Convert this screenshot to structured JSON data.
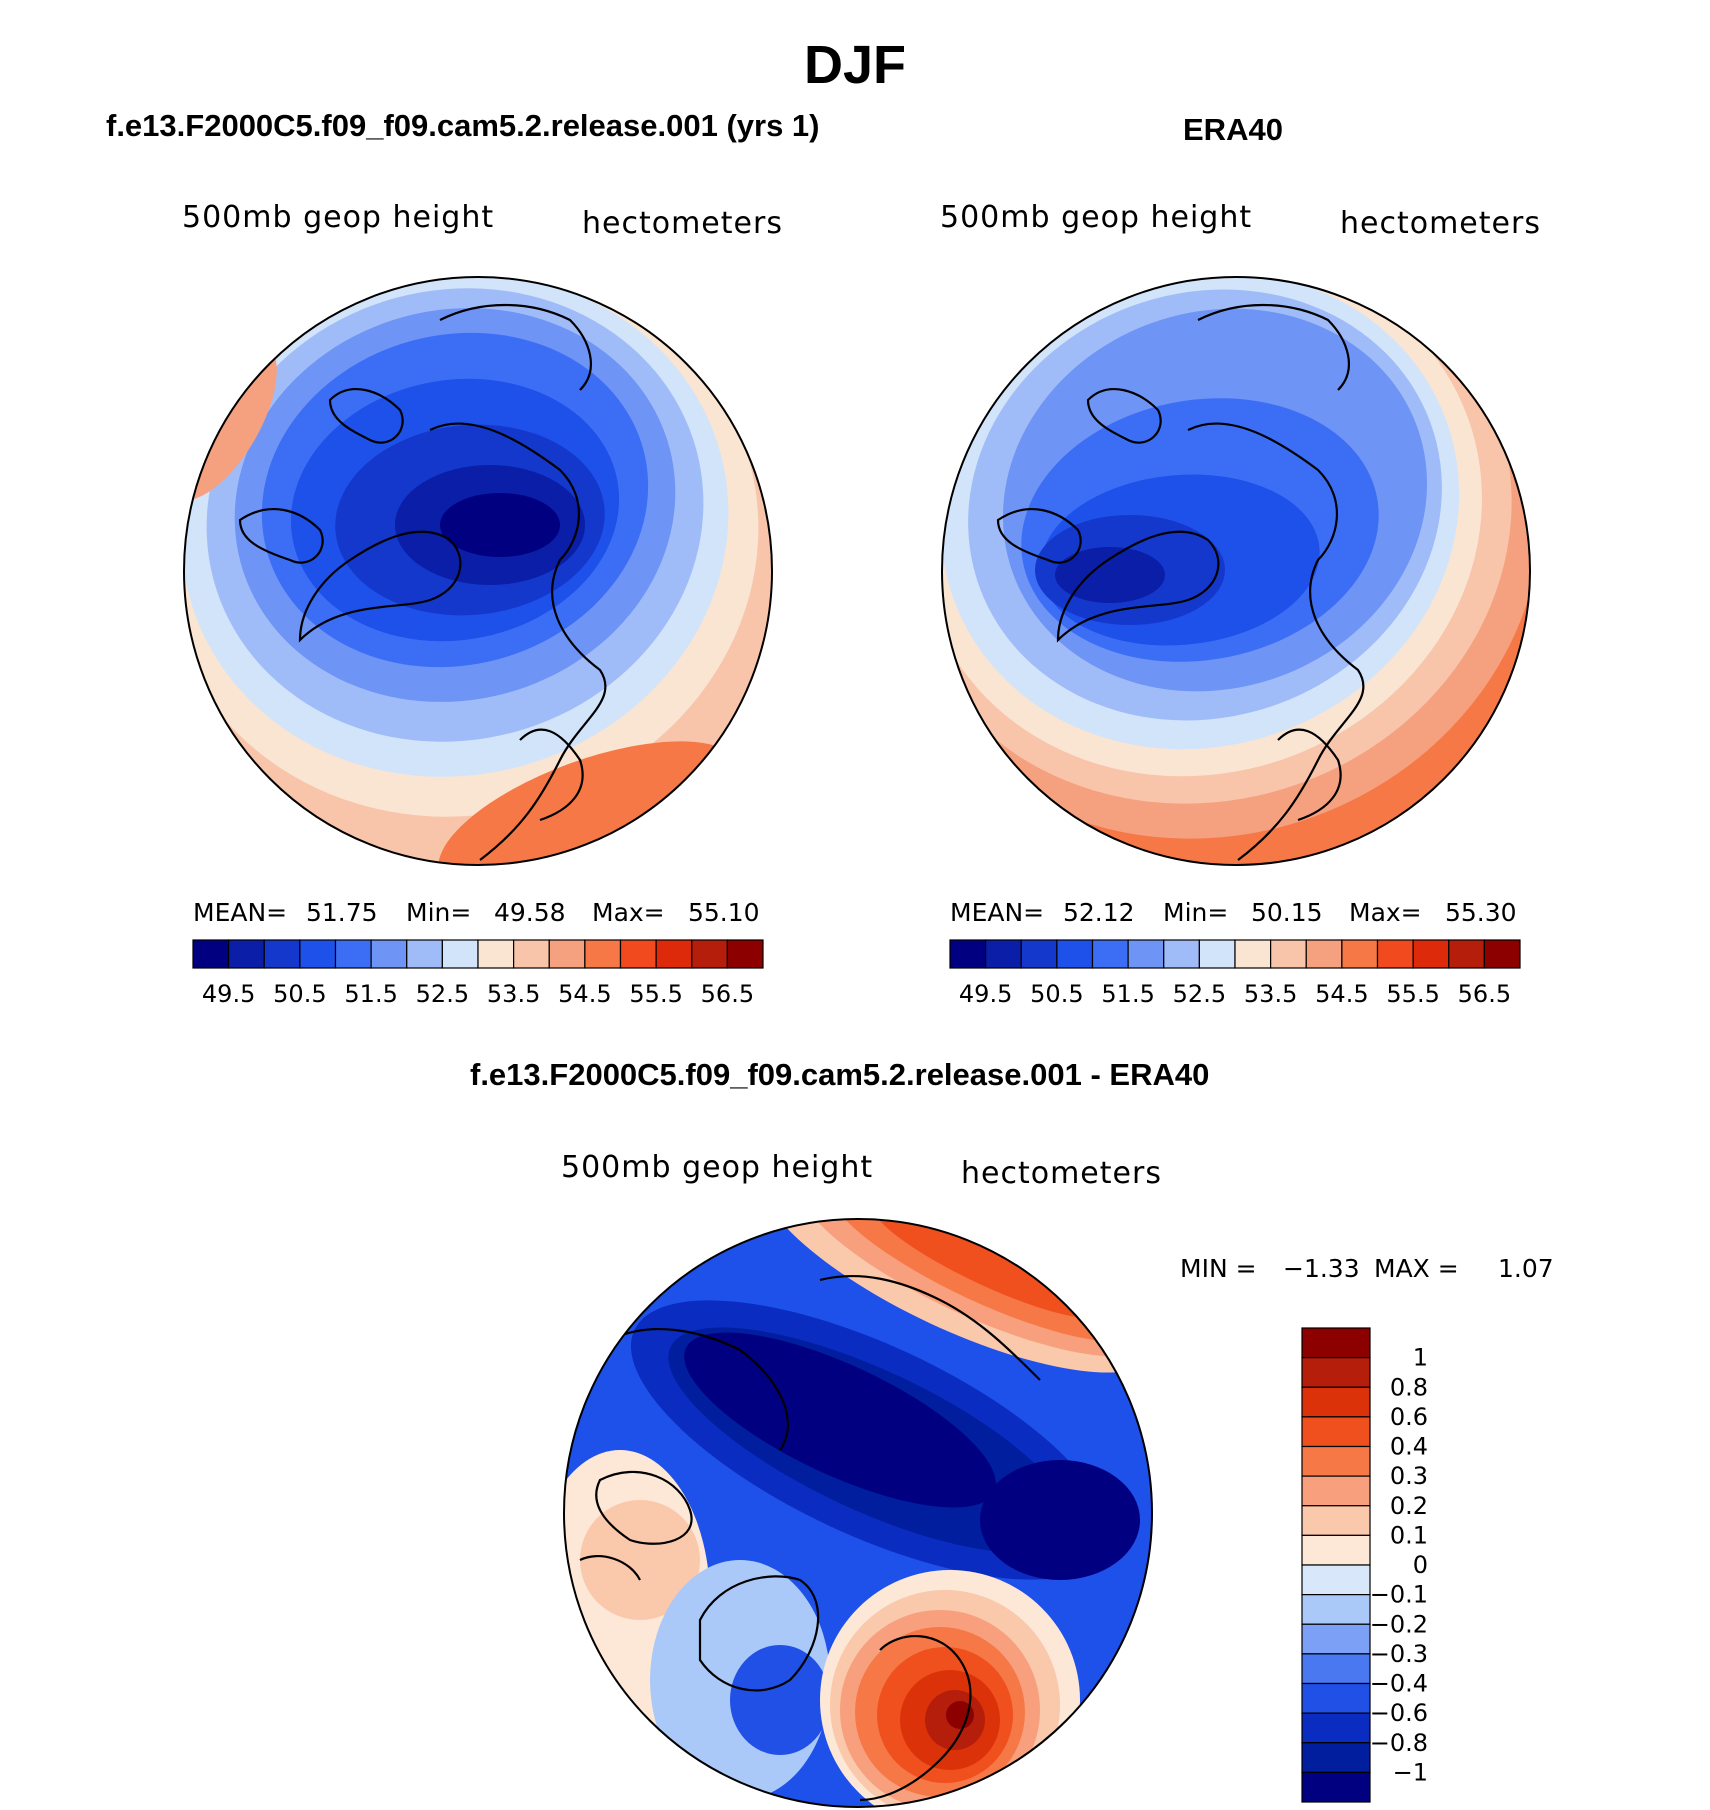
{
  "figure": {
    "title": "DJF",
    "panel_left_title": "f.e13.F2000C5.f09_f09.cam5.2.release.001 (yrs 1)",
    "panel_right_title": "ERA40",
    "panel_bottom_title": "f.e13.F2000C5.f09_f09.cam5.2.release.001 - ERA40"
  },
  "chart_data": [
    {
      "type": "heatmap",
      "projection": "north polar stereographic",
      "panel": "model",
      "variable_label": "500mb geop height",
      "units_label": "hectometers",
      "stats": {
        "mean_label": "MEAN=",
        "mean": "51.75",
        "min_label": "Min=",
        "min": "49.58",
        "max_label": "Max=",
        "max": "55.10"
      },
      "colorbar": {
        "orientation": "horizontal",
        "levels": [
          49.5,
          50,
          50.5,
          51,
          51.5,
          52,
          52.5,
          53,
          53.5,
          54,
          54.5,
          55,
          55.5,
          56,
          56.5
        ],
        "tick_labels": [
          "49.5",
          "50.5",
          "51.5",
          "52.5",
          "53.5",
          "54.5",
          "55.5",
          "56.5"
        ],
        "colors": [
          "#000080",
          "#0a1ea8",
          "#1438cc",
          "#1e50ea",
          "#3c6ef5",
          "#6e94f5",
          "#a0bcf8",
          "#d2e4fa",
          "#fae4d2",
          "#f8c4aa",
          "#f5a07e",
          "#f57846",
          "#f04a1e",
          "#dc2a0a",
          "#b41e0a",
          "#8c0000"
        ]
      }
    },
    {
      "type": "heatmap",
      "projection": "north polar stereographic",
      "panel": "ERA40",
      "variable_label": "500mb geop height",
      "units_label": "hectometers",
      "stats": {
        "mean_label": "MEAN=",
        "mean": "52.12",
        "min_label": "Min=",
        "min": "50.15",
        "max_label": "Max=",
        "max": "55.30"
      },
      "colorbar": {
        "orientation": "horizontal",
        "levels": [
          49.5,
          50,
          50.5,
          51,
          51.5,
          52,
          52.5,
          53,
          53.5,
          54,
          54.5,
          55,
          55.5,
          56,
          56.5
        ],
        "tick_labels": [
          "49.5",
          "50.5",
          "51.5",
          "52.5",
          "53.5",
          "54.5",
          "55.5",
          "56.5"
        ],
        "colors": [
          "#000080",
          "#0a1ea8",
          "#1438cc",
          "#1e50ea",
          "#3c6ef5",
          "#6e94f5",
          "#a0bcf8",
          "#d2e4fa",
          "#fae4d2",
          "#f8c4aa",
          "#f5a07e",
          "#f57846",
          "#f04a1e",
          "#dc2a0a",
          "#b41e0a",
          "#8c0000"
        ]
      }
    },
    {
      "type": "heatmap",
      "projection": "north polar stereographic",
      "panel": "difference",
      "variable_label": "500mb geop height",
      "units_label": "hectometers",
      "stats": {
        "min_label": "MIN =",
        "min": "−1.33",
        "max_label": "MAX =",
        "max": "1.07"
      },
      "colorbar": {
        "orientation": "vertical",
        "levels": [
          1,
          0.8,
          0.6,
          0.4,
          0.3,
          0.2,
          0.1,
          0,
          -0.1,
          -0.2,
          -0.3,
          -0.4,
          -0.6,
          -0.8,
          -1
        ],
        "tick_labels": [
          "1",
          "0.8",
          "0.6",
          "0.4",
          "0.3",
          "0.2",
          "0.1",
          "0",
          "−0.1",
          "−0.2",
          "−0.3",
          "−0.4",
          "−0.6",
          "−0.8",
          "−1"
        ],
        "colors_top_to_bottom": [
          "#8c0000",
          "#b41e0a",
          "#dc320a",
          "#f0501e",
          "#f57846",
          "#f8a07e",
          "#fac8aa",
          "#fde8d8",
          "#d8e8fa",
          "#aac8f8",
          "#7ca0f5",
          "#4a78f0",
          "#2050e6",
          "#0a2cc0",
          "#001e9e",
          "#000080"
        ]
      }
    }
  ],
  "colors": {
    "low": "#000080",
    "high": "#8c0000",
    "coast": "#000000"
  }
}
